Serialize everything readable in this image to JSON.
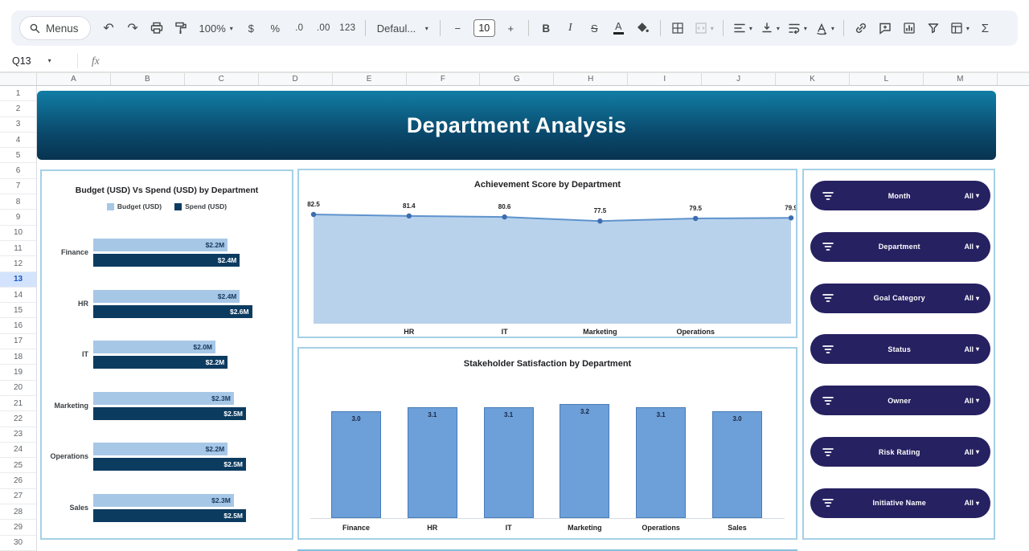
{
  "icons": {
    "caret_down": "▾",
    "undo": "↶",
    "redo": "↷"
  },
  "toolbar": {
    "menus_label": "Menus",
    "zoom_value": "100%",
    "currency_label": "$",
    "percent_label": "%",
    "decrease_decimal_label": ".0",
    "increase_decimal_label": ".00",
    "number_format_label": "123",
    "font_value": "Defaul...",
    "decrease_font_label": "−",
    "font_size_value": "10",
    "increase_font_label": "+",
    "bold_label": "B",
    "italic_label": "I",
    "strikethrough_label": "S",
    "text_color_label": "A",
    "sum_label": "Σ"
  },
  "formula_bar": {
    "name_box_value": "Q13",
    "fx_label": "fx"
  },
  "grid": {
    "column_headers": [
      "A",
      "B",
      "C",
      "D",
      "E",
      "F",
      "G",
      "H",
      "I",
      "J",
      "K",
      "L",
      "M"
    ],
    "row_count": 30,
    "selected_row": "13"
  },
  "banner": {
    "title": "Department Analysis",
    "gradient_top": "#117ea5",
    "gradient_mid": "#0a4a6d",
    "gradient_bottom": "#083350"
  },
  "theme": {
    "panel_border": "#a5d0e6",
    "toolbar_bg": "#f0f4f9",
    "selected_row_bg": "#d3e3fd",
    "slicer_bg": "#262161",
    "bottom_edge": "#86bedd"
  },
  "slicers": {
    "items": [
      {
        "label": "Month",
        "value": "All"
      },
      {
        "label": "Department",
        "value": "All"
      },
      {
        "label": "Goal Category",
        "value": "All"
      },
      {
        "label": "Status",
        "value": "All"
      },
      {
        "label": "Owner",
        "value": "All"
      },
      {
        "label": "Risk Rating",
        "value": "All"
      },
      {
        "label": "Initiative Name",
        "value": "All"
      }
    ]
  },
  "chart_data": [
    {
      "type": "bar",
      "orientation": "horizontal",
      "title": "Budget (USD) Vs Spend (USD) by Department",
      "categories": [
        "Finance",
        "HR",
        "IT",
        "Marketing",
        "Operations",
        "Sales"
      ],
      "series": [
        {
          "name": "Budget (USD)",
          "color": "#a7c7e7",
          "values": [
            2.2,
            2.4,
            2.0,
            2.3,
            2.2,
            2.3
          ],
          "labels": [
            "$2.2M",
            "$2.4M",
            "$2.0M",
            "$2.3M",
            "$2.2M",
            "$2.3M"
          ]
        },
        {
          "name": "Spend (USD)",
          "color": "#0c3b60",
          "values": [
            2.4,
            2.6,
            2.2,
            2.5,
            2.5,
            2.5
          ],
          "labels": [
            "$2.4M",
            "$2.6M",
            "$2.2M",
            "$2.5M",
            "$2.5M",
            "$2.5M"
          ]
        }
      ],
      "xlim": [
        0,
        2.7
      ],
      "legend_position": "top"
    },
    {
      "type": "area",
      "title": "Achievement Score by Department",
      "values": [
        82.5,
        81.4,
        80.6,
        77.5,
        79.5,
        79.9
      ],
      "x_labels_visible": [
        "HR",
        "IT",
        "Marketing",
        "Operations"
      ],
      "ylim": [
        0,
        85
      ],
      "fill_color": "#b9d2eb",
      "line_color": "#5e93cd",
      "point_color": "#3d6cb0"
    },
    {
      "type": "bar",
      "title": "Stakeholder Satisfaction by Department",
      "categories": [
        "Finance",
        "HR",
        "IT",
        "Marketing",
        "Operations",
        "Sales"
      ],
      "values": [
        3.0,
        3.1,
        3.1,
        3.2,
        3.1,
        3.0
      ],
      "ylim": [
        0,
        3.6
      ],
      "bar_color": "#6d9fd8"
    }
  ]
}
